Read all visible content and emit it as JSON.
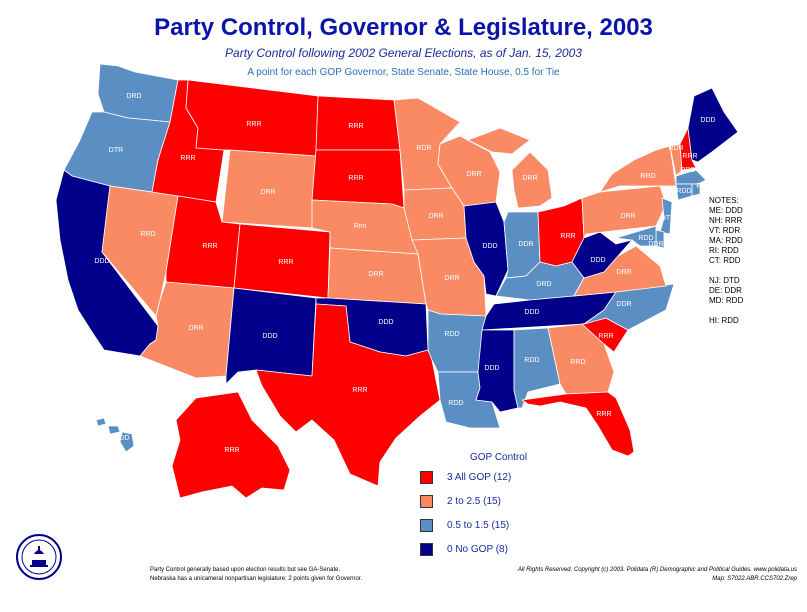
{
  "title": "Party Control, Governor & Legislature, 2003",
  "subtitle": "Party Control following 2002 General Elections, as of Jan. 15, 2003",
  "subtitle2": "A point for each GOP Governor, State Senate, State House, 0.5 for Tie",
  "colors": {
    "all_gop": "#ff0000",
    "two": "#fa8a64",
    "half": "#5b8fc4",
    "none": "#00008a"
  },
  "states": {
    "WA": {
      "label": "DRD",
      "cat": "half"
    },
    "OR": {
      "label": "DTR",
      "cat": "half"
    },
    "CA": {
      "label": "DDD",
      "cat": "none"
    },
    "NV": {
      "label": "RRD",
      "cat": "two"
    },
    "ID": {
      "label": "RRR",
      "cat": "all_gop"
    },
    "MT": {
      "label": "RRR",
      "cat": "all_gop"
    },
    "WY": {
      "label": "DRR",
      "cat": "two"
    },
    "UT": {
      "label": "RRR",
      "cat": "all_gop"
    },
    "AZ": {
      "label": "DRR",
      "cat": "two"
    },
    "CO": {
      "label": "RRR",
      "cat": "all_gop"
    },
    "NM": {
      "label": "DDD",
      "cat": "none"
    },
    "ND": {
      "label": "RRR",
      "cat": "all_gop"
    },
    "SD": {
      "label": "RRR",
      "cat": "all_gop"
    },
    "NE": {
      "label": "Rnn",
      "cat": "two"
    },
    "KS": {
      "label": "DRR",
      "cat": "two"
    },
    "OK": {
      "label": "DDD",
      "cat": "none"
    },
    "TX": {
      "label": "RRR",
      "cat": "all_gop"
    },
    "MN": {
      "label": "RDR",
      "cat": "two"
    },
    "IA": {
      "label": "DRR",
      "cat": "two"
    },
    "MO": {
      "label": "DRR",
      "cat": "two"
    },
    "AR": {
      "label": "RDD",
      "cat": "half"
    },
    "LA": {
      "label": "RDD",
      "cat": "half"
    },
    "WI": {
      "label": "DRR",
      "cat": "two"
    },
    "IL": {
      "label": "DDD",
      "cat": "none"
    },
    "MI": {
      "label": "DRR",
      "cat": "two"
    },
    "IN": {
      "label": "DDR",
      "cat": "half"
    },
    "OH": {
      "label": "RRR",
      "cat": "all_gop"
    },
    "KY": {
      "label": "DRD",
      "cat": "half"
    },
    "TN": {
      "label": "DDD",
      "cat": "none"
    },
    "MS": {
      "label": "DDD",
      "cat": "none"
    },
    "AL": {
      "label": "RDD",
      "cat": "half"
    },
    "GA": {
      "label": "RRD",
      "cat": "two"
    },
    "FL": {
      "label": "RRR",
      "cat": "all_gop"
    },
    "SC": {
      "label": "RRR",
      "cat": "all_gop"
    },
    "NC": {
      "label": "DDR",
      "cat": "half"
    },
    "VA": {
      "label": "DRR",
      "cat": "two"
    },
    "WV": {
      "label": "DDD",
      "cat": "none"
    },
    "PA": {
      "label": "DRR",
      "cat": "two"
    },
    "NY": {
      "label": "RRD",
      "cat": "two"
    },
    "NJ": {
      "label": "DTD",
      "cat": "half"
    },
    "DE": {
      "label": "DDR",
      "cat": "half"
    },
    "MD": {
      "label": "RDD",
      "cat": "half"
    },
    "VT": {
      "label": "RDR",
      "cat": "two"
    },
    "NH": {
      "label": "RRR",
      "cat": "all_gop"
    },
    "ME": {
      "label": "DDD",
      "cat": "none"
    },
    "MA": {
      "label": "RDD",
      "cat": "half"
    },
    "CT": {
      "label": "RDD",
      "cat": "half"
    },
    "RI": {
      "label": "RDD",
      "cat": "half"
    },
    "AK": {
      "label": "RRR",
      "cat": "all_gop"
    },
    "HI": {
      "label": "RDD",
      "cat": "half"
    }
  },
  "notes": {
    "header": "NOTES:",
    "lines1": [
      "ME: DDD",
      "NH: RRR",
      "VT: RDR",
      "MA: RDD",
      "RI: RDD",
      "CT: RDD"
    ],
    "lines2": [
      "NJ: DTD",
      "DE: DDR",
      "MD: RDD"
    ],
    "lines3": [
      "HI: RDD"
    ]
  },
  "legend": {
    "title": "GOP Control",
    "items": [
      {
        "label": "3 All GOP (12)",
        "color": "#ff0000"
      },
      {
        "label": "2  to 2.5 (15)",
        "color": "#fa8a64"
      },
      {
        "label": "0.5 to 1.5 (15)",
        "color": "#5b8fc4"
      },
      {
        "label": "0 No GOP (8)",
        "color": "#00008a"
      }
    ]
  },
  "footer": {
    "left1": "Party Control generally based upon election results but see GA-Senate.",
    "left2": "Nebraska has a unicameral nonpartisan legislature; 2 points given for Governor.",
    "right1": "All Rights Reserved. Copyright (c) 2003. Polidata (R) Demographic and Political Guides. www.polidata.us",
    "right2": "Map: S7022.ABR.CCS702.Zrep"
  },
  "seal_icon": "capitol-seal-icon"
}
